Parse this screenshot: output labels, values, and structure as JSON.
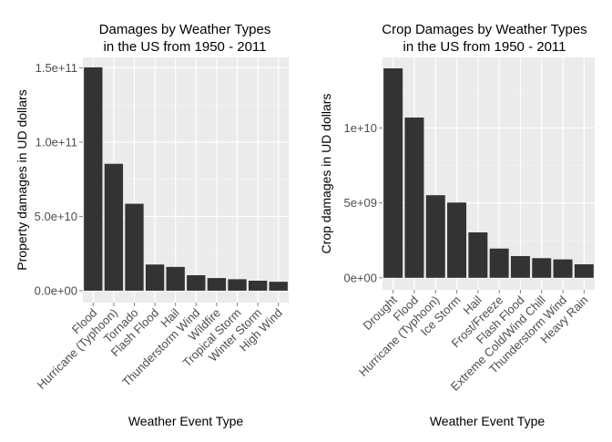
{
  "chart_data": [
    {
      "type": "bar",
      "title": [
        "Damages by Weather Types",
        "in the US from 1950 - 2011"
      ],
      "xlabel": "Weather Event Type",
      "ylabel": "Property damages in UD dollars",
      "categories": [
        "Flood",
        "Hurricane (Typhoon)",
        "Tornado",
        "Flash Flood",
        "Hail",
        "Thunderstorm Wind",
        "Wildfire",
        "Tropical Storm",
        "Winter Storm",
        "High Wind"
      ],
      "values": [
        150300000000,
        85400000000,
        58500000000,
        17600000000,
        16000000000,
        10400000000,
        8500000000,
        7700000000,
        6700000000,
        6000000000
      ],
      "ylim": [
        -8000000000,
        157000000000
      ],
      "yticks": [
        0,
        50000000000,
        100000000000,
        150000000000
      ],
      "ytick_labels": [
        "0.0e+00",
        "5.0e+10",
        "1.0e+11",
        "1.5e+11"
      ],
      "grid": true,
      "bar_color": "#333333",
      "panel_color": "#ebebeb"
    },
    {
      "type": "bar",
      "title": [
        "Crop Damages by Weather Types",
        "in the US from 1950 - 2011"
      ],
      "xlabel": "Weather Event Type",
      "ylabel": "Crop damages in UD dollars",
      "categories": [
        "Drought",
        "Flood",
        "Hurricane (Typhoon)",
        "Ice Storm",
        "Hail",
        "Frost/Freeze",
        "Flash Flood",
        "Extreme Cold/Wind Chill",
        "Thunderstorm Wind",
        "Heavy Rain"
      ],
      "values": [
        13970000000,
        10690000000,
        5510000000,
        5020000000,
        3030000000,
        1950000000,
        1450000000,
        1310000000,
        1230000000,
        900000000
      ],
      "ylim": [
        -800000000,
        14700000000
      ],
      "yticks": [
        0,
        5000000000,
        10000000000
      ],
      "ytick_labels": [
        "0e+00",
        "5e+09",
        "1e+10"
      ],
      "grid": true,
      "bar_color": "#333333",
      "panel_color": "#ebebeb"
    }
  ]
}
